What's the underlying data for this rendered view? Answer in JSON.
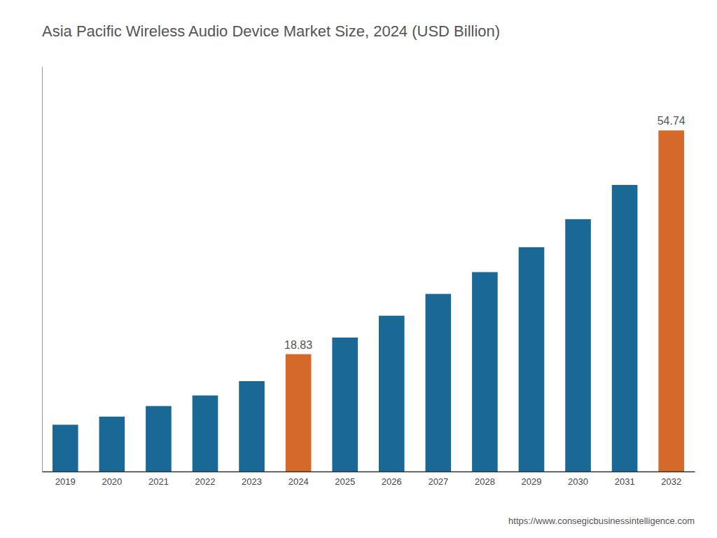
{
  "chart_data": {
    "type": "bar",
    "title": "Asia Pacific Wireless Audio Device Market Size, 2024 (USD Billion)",
    "categories": [
      "2019",
      "2020",
      "2021",
      "2022",
      "2023",
      "2024",
      "2025",
      "2026",
      "2027",
      "2028",
      "2029",
      "2030",
      "2031",
      "2032"
    ],
    "values": [
      7.5,
      8.8,
      10.5,
      12.2,
      14.5,
      18.83,
      21.5,
      25.0,
      28.5,
      32.0,
      36.0,
      40.5,
      46.0,
      54.74
    ],
    "colors": [
      "#1a6896",
      "#1a6896",
      "#1a6896",
      "#1a6896",
      "#1a6896",
      "#d4692a",
      "#1a6896",
      "#1a6896",
      "#1a6896",
      "#1a6896",
      "#1a6896",
      "#1a6896",
      "#1a6896",
      "#d4692a"
    ],
    "annotations": [
      {
        "category": "2024",
        "value": 18.83,
        "text": "18.83"
      },
      {
        "category": "2032",
        "value": 54.74,
        "text": "54.74"
      }
    ],
    "source": "https://www.consegicbusinessintelligence.com",
    "ylim": [
      0,
      65
    ],
    "grid": false,
    "tick_labels": "x"
  }
}
